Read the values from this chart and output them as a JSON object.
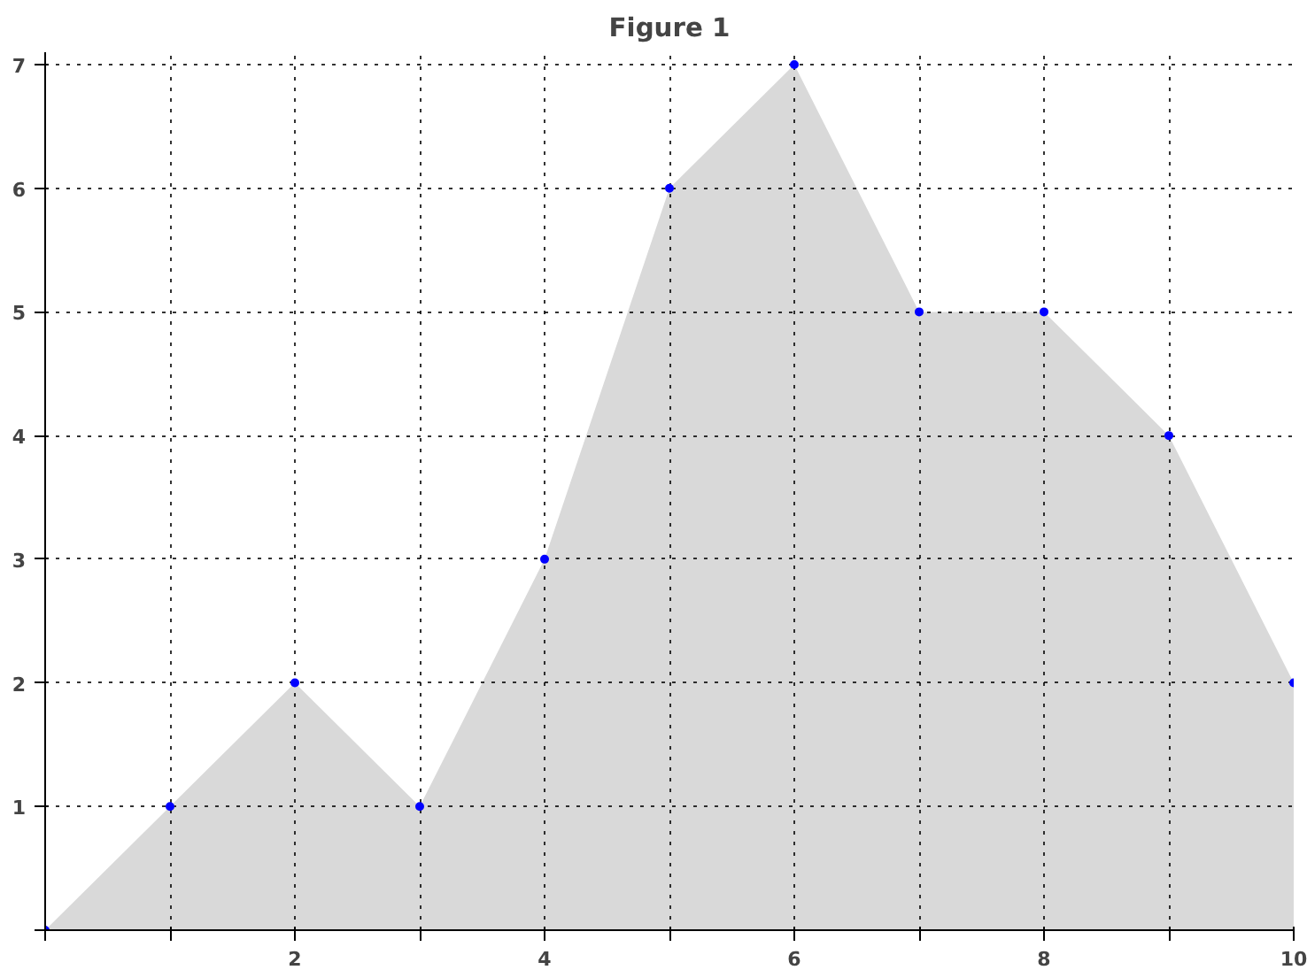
{
  "chart_data": {
    "type": "area",
    "title": "Figure 1",
    "x": [
      0,
      1,
      2,
      3,
      4,
      5,
      6,
      7,
      8,
      9,
      10
    ],
    "series": [
      {
        "color": "#d9d9d9",
        "values": [
          0,
          1,
          2,
          1,
          3,
          6,
          7,
          5,
          5,
          4,
          2
        ]
      },
      {
        "type": "scatter",
        "color": "#0000ff",
        "marker": "circle",
        "values": [
          0,
          1,
          2,
          1,
          3,
          6,
          7,
          5,
          5,
          4,
          2
        ]
      }
    ],
    "xlim": [
      0,
      10
    ],
    "ylim": [
      0,
      7.1
    ],
    "xticks": [
      {
        "value": 0,
        "label": null
      },
      {
        "value": 1,
        "label": null
      },
      2,
      {
        "value": 3,
        "label": null
      },
      4,
      {
        "value": 5,
        "label": null
      },
      6,
      {
        "value": 7,
        "label": null
      },
      8,
      {
        "value": 9,
        "label": null
      },
      10
    ],
    "yticks": [
      {
        "value": 0,
        "label": null
      },
      1,
      2,
      3,
      4,
      5,
      6,
      7
    ],
    "grid": true,
    "line_style": "dotted"
  }
}
